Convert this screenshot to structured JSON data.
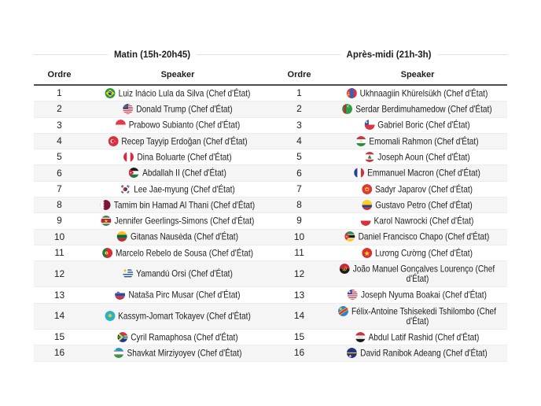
{
  "sessions": [
    {
      "title": "Matin (15h-20h45)",
      "columns": {
        "order": "Ordre",
        "speaker": "Speaker"
      },
      "rows": [
        {
          "order": "1",
          "flag": "flag-brazil",
          "speaker": "Luiz Inácio Lula da Silva (Chef d'État)"
        },
        {
          "order": "2",
          "flag": "flag-united-states",
          "speaker": "Donald Trump (Chef d'État)"
        },
        {
          "order": "3",
          "flag": "flag-indonesia",
          "speaker": "Prabowo Subianto (Chef d'État)"
        },
        {
          "order": "4",
          "flag": "flag-turkey",
          "speaker": "Recep Tayyip Erdoğan (Chef d'État)"
        },
        {
          "order": "5",
          "flag": "flag-peru",
          "speaker": "Dina Boluarte (Chef d'État)"
        },
        {
          "order": "6",
          "flag": "flag-jordan",
          "speaker": "Abdallah II (Chef d'État)"
        },
        {
          "order": "7",
          "flag": "flag-south-korea",
          "speaker": "Lee Jae-myung (Chef d'État)"
        },
        {
          "order": "8",
          "flag": "flag-qatar",
          "speaker": "Tamim bin Hamad Al Thani (Chef d'État)"
        },
        {
          "order": "9",
          "flag": "flag-suriname",
          "speaker": "Jennifer Geerlings-Simons (Chef d'État)"
        },
        {
          "order": "10",
          "flag": "flag-lithuania",
          "speaker": "Gitanas Nausėda (Chef d'État)"
        },
        {
          "order": "11",
          "flag": "flag-portugal",
          "speaker": "Marcelo Rebelo de Sousa (Chef d'État)"
        },
        {
          "order": "12",
          "flag": "flag-uruguay",
          "speaker": "Yamandú Orsi (Chef d'État)"
        },
        {
          "order": "13",
          "flag": "flag-slovenia",
          "speaker": "Nataša Pirc Musar (Chef d'État)"
        },
        {
          "order": "14",
          "flag": "flag-kazakhstan",
          "speaker": "Kassym-Jomart Tokayev (Chef d'État)"
        },
        {
          "order": "15",
          "flag": "flag-south-africa",
          "speaker": "Cyril Ramaphosa (Chef d'État)"
        },
        {
          "order": "16",
          "flag": "flag-uzbekistan",
          "speaker": "Shavkat Mirziyoyev (Chef d'État)"
        }
      ]
    },
    {
      "title": "Après-midi (21h-3h)",
      "columns": {
        "order": "Ordre",
        "speaker": "Speaker"
      },
      "rows": [
        {
          "order": "1",
          "flag": "flag-mongolia",
          "speaker": "Ukhnaagiin Khürelsükh (Chef d'État)"
        },
        {
          "order": "2",
          "flag": "flag-turkmenistan",
          "speaker": "Serdar Berdimuhamedow (Chef d'État)"
        },
        {
          "order": "3",
          "flag": "flag-chile",
          "speaker": "Gabriel Boric (Chef d'État)"
        },
        {
          "order": "4",
          "flag": "flag-tajikistan",
          "speaker": "Emomali Rahmon (Chef d'État)"
        },
        {
          "order": "5",
          "flag": "flag-lebanon",
          "speaker": "Joseph Aoun (Chef d'État)"
        },
        {
          "order": "6",
          "flag": "flag-france",
          "speaker": "Emmanuel Macron (Chef d'État)"
        },
        {
          "order": "7",
          "flag": "flag-kyrgyzstan",
          "speaker": "Sadyr Japarov (Chef d'État)"
        },
        {
          "order": "8",
          "flag": "flag-colombia",
          "speaker": "Gustavo Petro (Chef d'État)"
        },
        {
          "order": "9",
          "flag": "flag-poland",
          "speaker": "Karol Nawrocki (Chef d'État)"
        },
        {
          "order": "10",
          "flag": "flag-mozambique",
          "speaker": "Daniel Francisco Chapo (Chef d'État)"
        },
        {
          "order": "11",
          "flag": "flag-vietnam",
          "speaker": "Lương Cường (Chef d'État)"
        },
        {
          "order": "12",
          "flag": "flag-angola",
          "speaker": "João Manuel Gonçalves Lourenço (Chef d'État)"
        },
        {
          "order": "13",
          "flag": "flag-liberia",
          "speaker": "Joseph Nyuma Boakai (Chef d'État)"
        },
        {
          "order": "14",
          "flag": "flag-dr-congo",
          "speaker": "Félix-Antoine Tshisekedi Tshilombo (Chef d'État)"
        },
        {
          "order": "15",
          "flag": "flag-iraq",
          "speaker": "Abdul Latif Rashid (Chef d'État)"
        },
        {
          "order": "16",
          "flag": "flag-nauru",
          "speaker": "David Ranibok Adeang (Chef d'État)"
        }
      ]
    }
  ],
  "colors": {
    "zebra_row": "#f5f5f5",
    "header_rule": "#4d4d4d",
    "caption_line": "#e2e2e2",
    "text": "#202122"
  }
}
